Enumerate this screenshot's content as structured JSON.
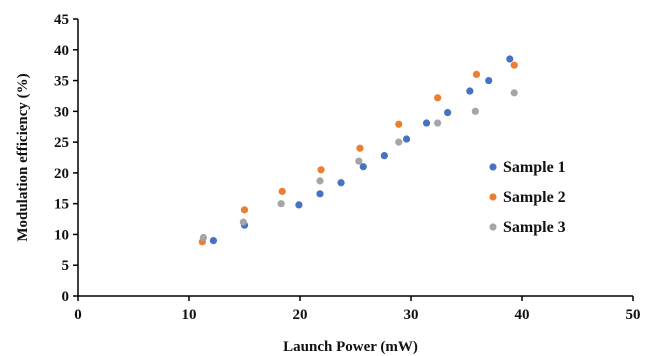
{
  "chart_data": {
    "type": "scatter",
    "title": "",
    "xlabel": "Launch Power (mW)",
    "ylabel": "Modulation efficiency (%)",
    "xlim": [
      0,
      50
    ],
    "ylim": [
      0,
      45
    ],
    "x_ticks": [
      0,
      10,
      20,
      30,
      40,
      50
    ],
    "y_ticks": [
      0,
      5,
      10,
      15,
      20,
      25,
      30,
      35,
      40,
      45
    ],
    "grid": false,
    "legend_position": "right",
    "series": [
      {
        "name": "Sample 1",
        "color": "#4472c4",
        "points": [
          [
            12.2,
            9.0
          ],
          [
            15.0,
            11.5
          ],
          [
            19.9,
            14.8
          ],
          [
            21.8,
            16.6
          ],
          [
            23.7,
            18.4
          ],
          [
            25.7,
            21.0
          ],
          [
            27.6,
            22.8
          ],
          [
            29.6,
            25.5
          ],
          [
            31.4,
            28.1
          ],
          [
            33.3,
            29.8
          ],
          [
            35.3,
            33.3
          ],
          [
            37.0,
            35.0
          ],
          [
            38.9,
            38.5
          ]
        ]
      },
      {
        "name": "Sample 2",
        "color": "#ed7d31",
        "points": [
          [
            11.2,
            8.8
          ],
          [
            15.0,
            14.0
          ],
          [
            18.4,
            17.0
          ],
          [
            21.9,
            20.5
          ],
          [
            25.4,
            24.0
          ],
          [
            28.9,
            27.9
          ],
          [
            32.4,
            32.2
          ],
          [
            35.9,
            36.0
          ],
          [
            39.3,
            37.5
          ]
        ]
      },
      {
        "name": "Sample 3",
        "color": "#a5a5a5",
        "points": [
          [
            11.3,
            9.5
          ],
          [
            14.9,
            12.0
          ],
          [
            18.3,
            15.0
          ],
          [
            21.8,
            18.7
          ],
          [
            25.3,
            21.9
          ],
          [
            28.9,
            25.0
          ],
          [
            32.4,
            28.1
          ],
          [
            35.8,
            30.0
          ],
          [
            39.3,
            33.0
          ]
        ]
      }
    ]
  }
}
